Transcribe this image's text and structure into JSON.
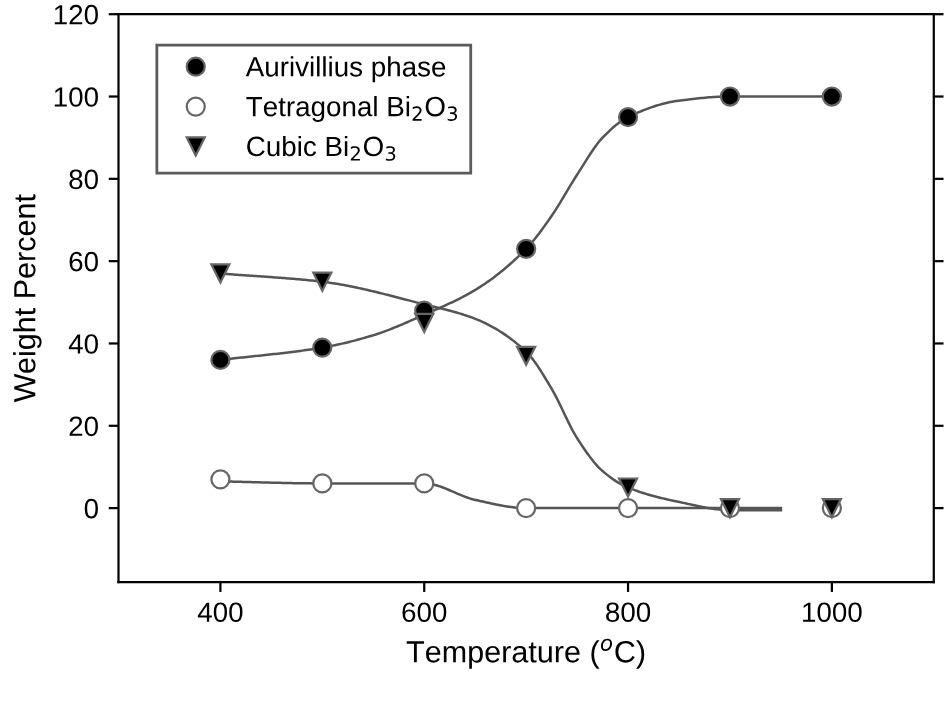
{
  "chart_data": {
    "type": "scatter",
    "xlabel": "Temperature ($^{o}$C)",
    "ylabel": "Weight Percent",
    "x": [
      400,
      500,
      600,
      700,
      800,
      900,
      1000
    ],
    "series": [
      {
        "type": "line",
        "color": "#555555",
        "x": [
          400,
          500,
          550,
          600,
          650,
          700,
          725,
          750,
          775,
          800,
          850,
          900,
          1000
        ],
        "values": [
          36,
          39,
          42,
          47,
          53,
          63,
          71,
          81,
          90,
          95,
          99,
          100,
          100
        ]
      },
      {
        "type": "line",
        "color": "#555555",
        "x": [
          400,
          500,
          600,
          650,
          700,
          800,
          900,
          950
        ],
        "values": [
          6.5,
          6,
          6,
          2,
          0,
          0,
          0,
          0
        ]
      },
      {
        "type": "line",
        "color": "#555555",
        "x": [
          400,
          500,
          600,
          650,
          700,
          725,
          750,
          775,
          800,
          850,
          900,
          950
        ],
        "values": [
          57,
          55,
          49.5,
          46,
          38,
          29,
          17,
          9,
          5,
          1.5,
          -0.5,
          -0.5
        ]
      },
      {
        "name": "Aurivillius phase",
        "color": "#000000",
        "marker": "circle",
        "values": [
          36,
          39,
          48,
          63,
          95,
          100,
          100
        ]
      },
      {
        "name": "Tetragonal Bi$_{2}$O$_{3}$",
        "color": "#ffffff",
        "marker": "circle",
        "values": [
          7,
          6,
          6,
          0,
          0,
          0,
          0
        ]
      },
      {
        "name": "Cubic Bi$_{2}$O$_{3}$",
        "color": "#000000",
        "marker": "triangle",
        "values": [
          57,
          55,
          45,
          37,
          5,
          0,
          0
        ]
      }
    ],
    "xlim": [
      300,
      1100
    ],
    "xticks": [
      400,
      600,
      800,
      1000
    ],
    "ylim": [
      -18,
      120
    ],
    "yticks": [
      0,
      20,
      40,
      60,
      80,
      100,
      120
    ],
    "grid": false,
    "legend": "top left",
    "line_style": "solid"
  }
}
